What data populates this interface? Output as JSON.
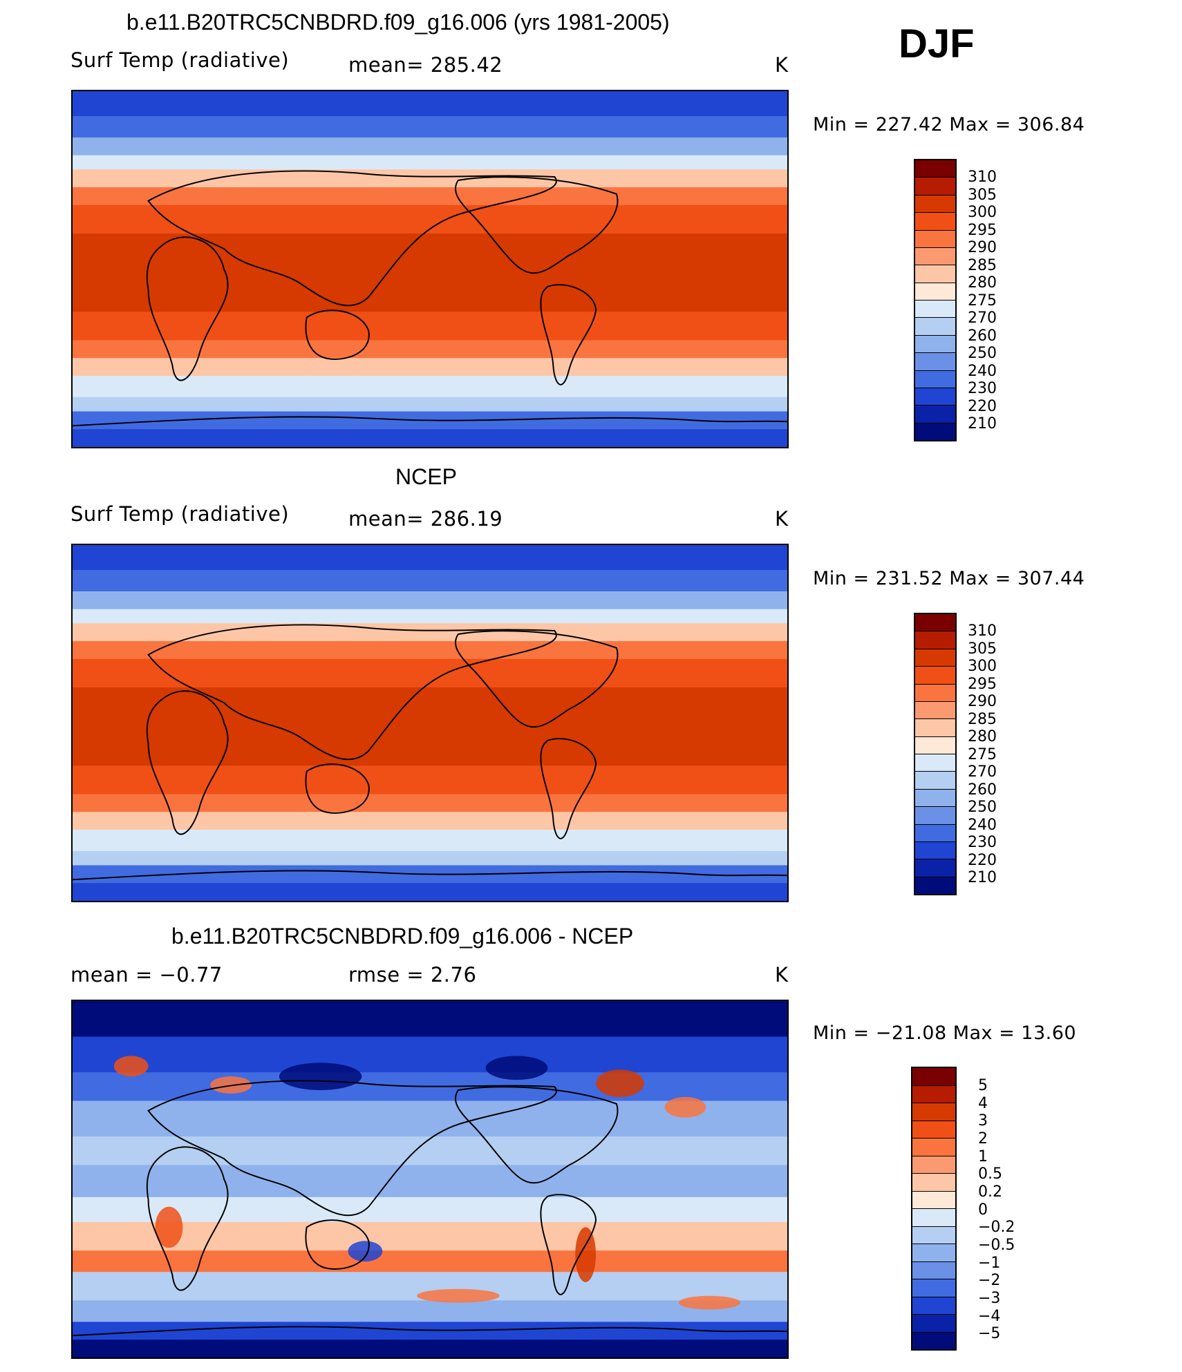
{
  "header": {
    "season": "DJF"
  },
  "panels": [
    {
      "id": "model",
      "title": "b.e11.B20TRC5CNBDRD.f09_g16.006 (yrs 1981-2005)",
      "left_label": "Surf Temp (radiative)",
      "center_label": "mean=  285.42",
      "units": "K",
      "minmax": "Min  =  227.42  Max  =  306.84",
      "colorbar": {
        "labels": [
          "310",
          "305",
          "300",
          "295",
          "290",
          "285",
          "280",
          "275",
          "270",
          "260",
          "250",
          "240",
          "230",
          "220",
          "210"
        ],
        "colors": [
          "#7a0000",
          "#b51c00",
          "#d63a00",
          "#f05016",
          "#fa7440",
          "#fb9a70",
          "#fdc6a6",
          "#fee8d8",
          "#d9e9f8",
          "#b4cff1",
          "#8fb2ec",
          "#6a91e6",
          "#416be0",
          "#1f45d2",
          "#0a22a8",
          "#000c7a"
        ]
      }
    },
    {
      "id": "obs",
      "title": "NCEP",
      "left_label": "Surf Temp (radiative)",
      "center_label": "mean=  286.19",
      "units": "K",
      "minmax": "Min  =  231.52  Max  =  307.44",
      "colorbar": {
        "labels": [
          "310",
          "305",
          "300",
          "295",
          "290",
          "285",
          "280",
          "275",
          "270",
          "260",
          "250",
          "240",
          "230",
          "220",
          "210"
        ],
        "colors": [
          "#7a0000",
          "#b51c00",
          "#d63a00",
          "#f05016",
          "#fa7440",
          "#fb9a70",
          "#fdc6a6",
          "#fee8d8",
          "#d9e9f8",
          "#b4cff1",
          "#8fb2ec",
          "#6a91e6",
          "#416be0",
          "#1f45d2",
          "#0a22a8",
          "#000c7a"
        ]
      }
    },
    {
      "id": "diff",
      "title": "b.e11.B20TRC5CNBDRD.f09_g16.006 - NCEP",
      "left_label": "mean =    −0.77",
      "center_label": "rmse =     2.76",
      "units": "K",
      "minmax": "Min  =  −21.08  Max  =    13.60",
      "colorbar": {
        "labels": [
          "5",
          "4",
          "3",
          "2",
          "1",
          "0.5",
          "0.2",
          "0",
          "−0.2",
          "−0.5",
          "−1",
          "−2",
          "−3",
          "−4",
          "−5"
        ],
        "colors": [
          "#7a0000",
          "#b51c00",
          "#d63a00",
          "#f05016",
          "#fa7440",
          "#fb9a70",
          "#fdc6a6",
          "#fee8d8",
          "#d9e9f8",
          "#b4cff1",
          "#8fb2ec",
          "#6a91e6",
          "#416be0",
          "#1f45d2",
          "#0a22a8",
          "#000c7a"
        ]
      }
    }
  ]
}
